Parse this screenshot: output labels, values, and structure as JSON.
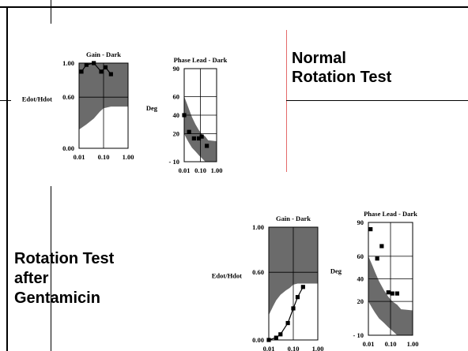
{
  "labels": {
    "normal": [
      "Normal",
      "Rotation Test"
    ],
    "gentamicin": [
      "Rotation Test",
      "after",
      "Gentamicin"
    ]
  },
  "colors": {
    "band": "#6b6b6b",
    "grid": "#000000",
    "marker": "#000000",
    "divider_red": "#e46a6a"
  },
  "chart_data": [
    {
      "type": "scatter",
      "panel": "normal",
      "title": "Gain - Dark",
      "ylabel": "Edot/Hdot",
      "xscale": "log",
      "xlim": [
        0.01,
        1.0
      ],
      "ylim": [
        0.0,
        1.0
      ],
      "xticks": [
        0.01,
        0.1,
        1.0
      ],
      "xtick_labels": [
        "0.01",
        "0.10",
        "1.00"
      ],
      "yticks": [
        0.0,
        0.6,
        1.0
      ],
      "ytick_labels": [
        "0.00",
        "0.60",
        "1.00"
      ],
      "band": {
        "x": [
          0.01,
          0.02,
          0.04,
          0.07,
          0.1,
          0.2,
          0.3,
          1.0
        ],
        "lower": [
          0.22,
          0.28,
          0.35,
          0.43,
          0.47,
          0.49,
          0.49,
          0.49
        ],
        "upper": [
          1.0,
          1.0,
          1.0,
          1.0,
          1.0,
          1.0,
          1.0,
          1.0
        ]
      },
      "x": [
        0.0125,
        0.02,
        0.04,
        0.08,
        0.12,
        0.2
      ],
      "y": [
        0.9,
        0.98,
        1.0,
        0.9,
        0.95,
        0.87
      ],
      "connected": true
    },
    {
      "type": "scatter",
      "panel": "normal",
      "title": "Phase Lead - Dark",
      "ylabel": "Deg",
      "xscale": "log",
      "xlim": [
        0.01,
        1.0
      ],
      "ylim": [
        -10,
        90
      ],
      "xticks": [
        0.01,
        0.1,
        1.0
      ],
      "xtick_labels": [
        "0.01",
        "0.10",
        "1.00"
      ],
      "yticks": [
        -10,
        20,
        40,
        60,
        90
      ],
      "ytick_labels": [
        "- 10",
        "20",
        "40",
        "60",
        "90"
      ],
      "band": {
        "x": [
          0.01,
          0.015,
          0.02,
          0.03,
          0.05,
          0.08,
          0.12,
          0.2,
          0.3,
          1.0
        ],
        "lower": [
          20,
          14,
          10,
          5,
          1,
          -3,
          -6,
          -10,
          -10,
          -10
        ],
        "upper": [
          60,
          52,
          46,
          38,
          30,
          24,
          20,
          17,
          13,
          12
        ]
      },
      "x": [
        0.01,
        0.02,
        0.04,
        0.08,
        0.12,
        0.25
      ],
      "y": [
        40,
        22,
        15,
        15,
        17,
        7
      ],
      "connected": false
    },
    {
      "type": "scatter",
      "panel": "gentamicin",
      "title": "Gain - Dark",
      "ylabel": "Edot/Hdot",
      "xscale": "log",
      "xlim": [
        0.01,
        1.0
      ],
      "ylim": [
        0.0,
        1.0
      ],
      "xticks": [
        0.01,
        0.1,
        1.0
      ],
      "xtick_labels": [
        "0.01",
        "0.10",
        "1.00"
      ],
      "yticks": [
        0.0,
        0.6,
        1.0
      ],
      "ytick_labels": [
        "0.00",
        "0.60",
        "1.00"
      ],
      "band": {
        "x": [
          0.01,
          0.015,
          0.02,
          0.03,
          0.05,
          0.07,
          0.1,
          0.15,
          0.3,
          1.0
        ],
        "lower": [
          0.22,
          0.3,
          0.35,
          0.4,
          0.44,
          0.46,
          0.49,
          0.5,
          0.5,
          0.5
        ],
        "upper": [
          1.0,
          1.0,
          1.0,
          1.0,
          1.0,
          1.0,
          1.0,
          1.0,
          1.0,
          1.0
        ]
      },
      "x": [
        0.01,
        0.02,
        0.03,
        0.06,
        0.1,
        0.15,
        0.25
      ],
      "y": [
        0.0,
        0.02,
        0.05,
        0.15,
        0.28,
        0.38,
        0.47
      ],
      "connected": true
    },
    {
      "type": "scatter",
      "panel": "gentamicin",
      "title": "Phase Lead - Dark",
      "ylabel": "Deg",
      "xscale": "log",
      "xlim": [
        0.01,
        1.0
      ],
      "ylim": [
        -10,
        90
      ],
      "xticks": [
        0.01,
        0.1,
        1.0
      ],
      "xtick_labels": [
        "0.01",
        "0.10",
        "1.00"
      ],
      "yticks": [
        -10,
        20,
        40,
        60,
        90
      ],
      "ytick_labels": [
        "- 10",
        "20",
        "40",
        "60",
        "90"
      ],
      "band": {
        "x": [
          0.01,
          0.015,
          0.02,
          0.03,
          0.05,
          0.08,
          0.12,
          0.2,
          0.3,
          1.0
        ],
        "lower": [
          20,
          14,
          10,
          5,
          1,
          -3,
          -6,
          -10,
          -10,
          -10
        ],
        "upper": [
          60,
          52,
          46,
          38,
          30,
          24,
          20,
          17,
          13,
          12
        ]
      },
      "x": [
        0.0125,
        0.025,
        0.04,
        0.08,
        0.12,
        0.2
      ],
      "y": [
        84,
        58,
        69,
        28,
        27,
        27
      ],
      "connected": false
    }
  ]
}
